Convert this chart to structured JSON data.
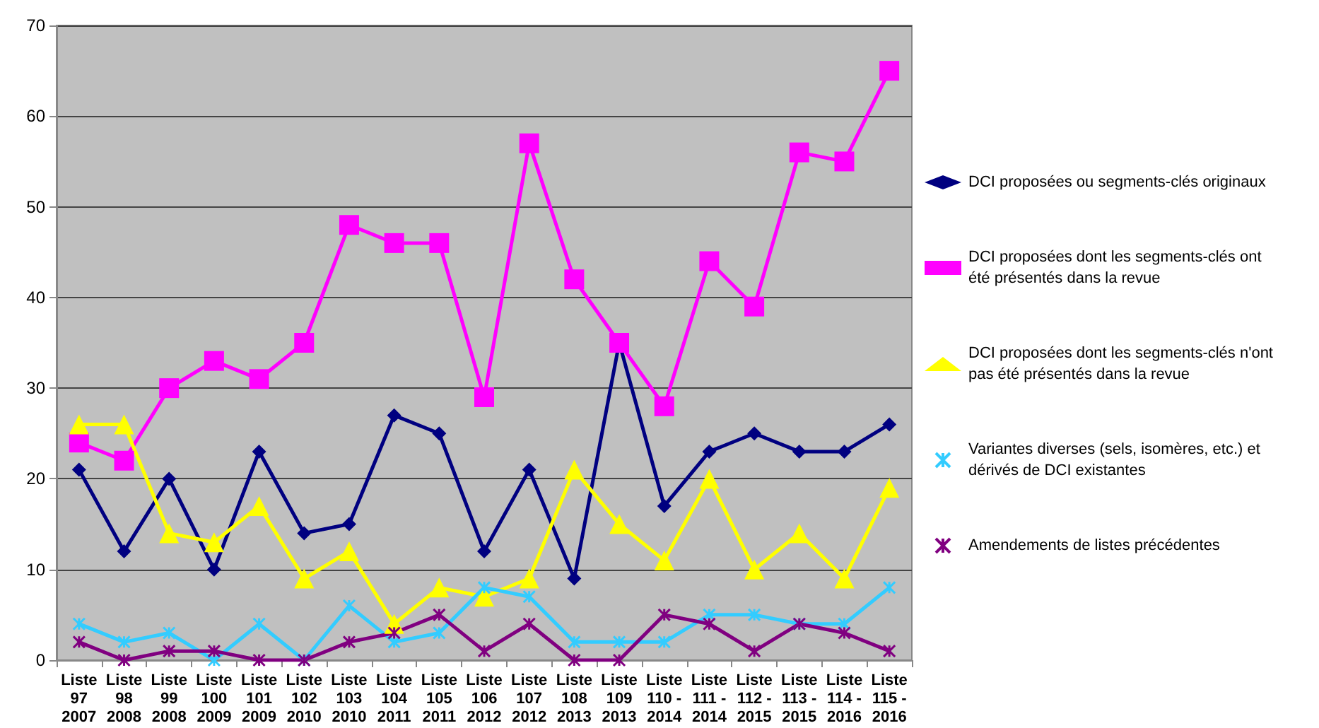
{
  "chart_data": {
    "type": "line",
    "categories": [
      "Liste\n97\n2007",
      "Liste\n98\n2008",
      "Liste\n99\n2008",
      "Liste\n100\n2009",
      "Liste\n101\n2009",
      "Liste\n102\n2010",
      "Liste\n103\n2010",
      "Liste\n104\n2011",
      "Liste\n105\n2011",
      "Liste\n106\n2012",
      "Liste\n107\n2012",
      "Liste\n108\n2013",
      "Liste\n109\n2013",
      "Liste\n110 -\n2014",
      "Liste\n111 -\n2014",
      "Liste\n112 -\n2015",
      "Liste\n113 -\n2015",
      "Liste\n114 -\n2016",
      "Liste\n115 -\n2016"
    ],
    "series": [
      {
        "name": "DCI proposées ou segments-clés originaux",
        "color": "#000080",
        "marker": "diamond",
        "values": [
          21,
          12,
          20,
          10,
          23,
          14,
          15,
          27,
          25,
          12,
          21,
          9,
          35,
          17,
          23,
          25,
          23,
          23,
          26
        ]
      },
      {
        "name": "DCI proposées dont les segments-clés ont été présentés dans la revue",
        "color": "#ff00ff",
        "marker": "square",
        "values": [
          24,
          22,
          30,
          33,
          31,
          35,
          48,
          46,
          46,
          29,
          57,
          42,
          35,
          28,
          44,
          39,
          56,
          55,
          65
        ]
      },
      {
        "name": "DCI proposées dont les segments-clés n'ont pas été présentés dans la revue",
        "color": "#ffff00",
        "marker": "triangle",
        "values": [
          26,
          26,
          14,
          13,
          17,
          9,
          12,
          4,
          8,
          7,
          9,
          21,
          15,
          11,
          20,
          10,
          14,
          9,
          19
        ]
      },
      {
        "name": "Variantes diverses (sels, isomères, etc.) et dérivés de DCI existantes",
        "color": "#33ccff",
        "marker": "cross",
        "values": [
          4,
          2,
          3,
          0,
          4,
          0,
          6,
          2,
          3,
          8,
          7,
          2,
          2,
          2,
          5,
          5,
          4,
          4,
          8
        ]
      },
      {
        "name": "Amendements de listes précédentes",
        "color": "#800080",
        "marker": "cross",
        "values": [
          2,
          0,
          1,
          1,
          0,
          0,
          2,
          3,
          5,
          1,
          4,
          0,
          0,
          5,
          4,
          1,
          4,
          3,
          1
        ]
      }
    ],
    "ylim": [
      0,
      70
    ],
    "yticks": [
      0,
      10,
      20,
      30,
      40,
      50,
      60,
      70
    ],
    "grid": "y",
    "legend": "right",
    "line_style": "solid"
  }
}
